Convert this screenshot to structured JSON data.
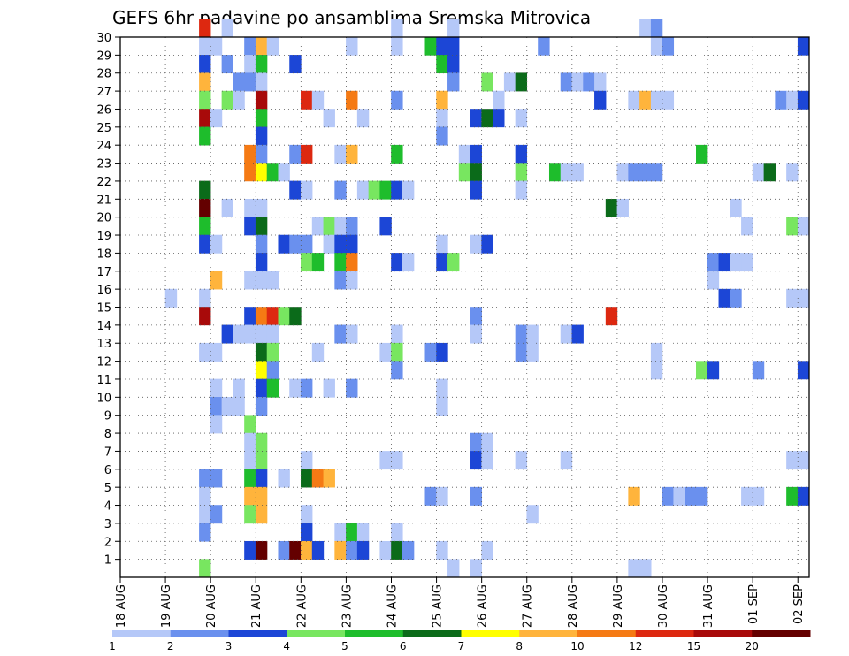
{
  "chart_data": {
    "type": "heatmap",
    "title": "GEFS 6hr padavine po ansamblima Sremska Mitrovica",
    "x_ticks": [
      "18 AUG",
      "19 AUG",
      "20 AUG",
      "21 AUG",
      "22 AUG",
      "23 AUG",
      "24 AUG",
      "25 AUG",
      "26 AUG",
      "27 AUG",
      "28 AUG",
      "29 AUG",
      "30 AUG",
      "31 AUG",
      "01 SEP",
      "02 SEP"
    ],
    "y_ticks": [
      1,
      2,
      3,
      4,
      5,
      6,
      7,
      8,
      9,
      10,
      11,
      12,
      13,
      14,
      15,
      16,
      17,
      18,
      19,
      20,
      21,
      22,
      23,
      24,
      25,
      26,
      27,
      28,
      29,
      30
    ],
    "xlim": [
      0,
      61
    ],
    "ylim": [
      0,
      30
    ],
    "grid": true,
    "colorbar": {
      "levels": [
        1,
        2,
        3,
        4,
        5,
        6,
        7,
        8,
        10,
        12,
        15,
        20
      ],
      "labels": [
        "1",
        "2",
        "3",
        "4",
        "5",
        "6",
        "7",
        "8",
        "10",
        "12",
        "15",
        "20"
      ],
      "colors": [
        "#b5c8f8",
        "#6a90ee",
        "#1c46d6",
        "#78e660",
        "#1ebd2c",
        "#0b6b1a",
        "#ffff00",
        "#ffb43c",
        "#f57a14",
        "#dd2810",
        "#a80a0a",
        "#640000"
      ]
    },
    "cells": [
      [
        7,
        30,
        10
      ],
      [
        9,
        30,
        1
      ],
      [
        24,
        30,
        1
      ],
      [
        29,
        30,
        1
      ],
      [
        46,
        30,
        1
      ],
      [
        47,
        30,
        2
      ],
      [
        7,
        29,
        1
      ],
      [
        8,
        29,
        1
      ],
      [
        11,
        29,
        2
      ],
      [
        12,
        29,
        8
      ],
      [
        13,
        29,
        1
      ],
      [
        20,
        29,
        1
      ],
      [
        24,
        29,
        1
      ],
      [
        27,
        29,
        5
      ],
      [
        28,
        29,
        3
      ],
      [
        29,
        29,
        3
      ],
      [
        37,
        29,
        2
      ],
      [
        47,
        29,
        1
      ],
      [
        48,
        29,
        2
      ],
      [
        60,
        29,
        3
      ],
      [
        7,
        28,
        3
      ],
      [
        9,
        28,
        2
      ],
      [
        11,
        28,
        1
      ],
      [
        12,
        28,
        5
      ],
      [
        15,
        28,
        3
      ],
      [
        28,
        28,
        5
      ],
      [
        29,
        28,
        3
      ],
      [
        7,
        27,
        8
      ],
      [
        10,
        27,
        2
      ],
      [
        11,
        27,
        2
      ],
      [
        12,
        27,
        1
      ],
      [
        29,
        27,
        2
      ],
      [
        32,
        27,
        4
      ],
      [
        34,
        27,
        1
      ],
      [
        35,
        27,
        6
      ],
      [
        39,
        27,
        2
      ],
      [
        40,
        27,
        1
      ],
      [
        41,
        27,
        2
      ],
      [
        42,
        27,
        1
      ],
      [
        7,
        26,
        4
      ],
      [
        9,
        26,
        4
      ],
      [
        10,
        26,
        1
      ],
      [
        12,
        26,
        11
      ],
      [
        16,
        26,
        10
      ],
      [
        17,
        26,
        1
      ],
      [
        20,
        26,
        9
      ],
      [
        24,
        26,
        2
      ],
      [
        28,
        26,
        8
      ],
      [
        33,
        26,
        1
      ],
      [
        42,
        26,
        3
      ],
      [
        45,
        26,
        1
      ],
      [
        46,
        26,
        8
      ],
      [
        47,
        26,
        1
      ],
      [
        48,
        26,
        1
      ],
      [
        58,
        26,
        2
      ],
      [
        59,
        26,
        1
      ],
      [
        60,
        26,
        3
      ],
      [
        7,
        25,
        11
      ],
      [
        8,
        25,
        1
      ],
      [
        12,
        25,
        5
      ],
      [
        18,
        25,
        1
      ],
      [
        21,
        25,
        1
      ],
      [
        28,
        25,
        1
      ],
      [
        31,
        25,
        3
      ],
      [
        32,
        25,
        6
      ],
      [
        33,
        25,
        3
      ],
      [
        35,
        25,
        1
      ],
      [
        7,
        24,
        5
      ],
      [
        12,
        24,
        3
      ],
      [
        28,
        24,
        2
      ],
      [
        11,
        23,
        9
      ],
      [
        12,
        23,
        2
      ],
      [
        15,
        23,
        2
      ],
      [
        16,
        23,
        10
      ],
      [
        19,
        23,
        1
      ],
      [
        20,
        23,
        8
      ],
      [
        24,
        23,
        5
      ],
      [
        30,
        23,
        1
      ],
      [
        31,
        23,
        3
      ],
      [
        35,
        23,
        3
      ],
      [
        51,
        23,
        5
      ],
      [
        11,
        22,
        9
      ],
      [
        12,
        22,
        7
      ],
      [
        13,
        22,
        5
      ],
      [
        14,
        22,
        1
      ],
      [
        30,
        22,
        4
      ],
      [
        31,
        22,
        6
      ],
      [
        35,
        22,
        4
      ],
      [
        38,
        22,
        5
      ],
      [
        39,
        22,
        1
      ],
      [
        40,
        22,
        1
      ],
      [
        44,
        22,
        1
      ],
      [
        45,
        22,
        2
      ],
      [
        46,
        22,
        2
      ],
      [
        47,
        22,
        2
      ],
      [
        56,
        22,
        1
      ],
      [
        57,
        22,
        6
      ],
      [
        59,
        22,
        1
      ],
      [
        7,
        21,
        6
      ],
      [
        15,
        21,
        3
      ],
      [
        16,
        21,
        1
      ],
      [
        19,
        21,
        2
      ],
      [
        21,
        21,
        1
      ],
      [
        22,
        21,
        4
      ],
      [
        23,
        21,
        5
      ],
      [
        24,
        21,
        3
      ],
      [
        25,
        21,
        1
      ],
      [
        31,
        21,
        3
      ],
      [
        35,
        21,
        1
      ],
      [
        7,
        20,
        12
      ],
      [
        9,
        20,
        1
      ],
      [
        11,
        20,
        1
      ],
      [
        12,
        20,
        1
      ],
      [
        43,
        20,
        6
      ],
      [
        44,
        20,
        1
      ],
      [
        54,
        20,
        1
      ],
      [
        7,
        19,
        5
      ],
      [
        11,
        19,
        3
      ],
      [
        12,
        19,
        6
      ],
      [
        17,
        19,
        1
      ],
      [
        18,
        19,
        4
      ],
      [
        19,
        19,
        1
      ],
      [
        20,
        19,
        2
      ],
      [
        23,
        19,
        3
      ],
      [
        55,
        19,
        1
      ],
      [
        59,
        19,
        4
      ],
      [
        60,
        19,
        1
      ],
      [
        7,
        18,
        3
      ],
      [
        8,
        18,
        1
      ],
      [
        12,
        18,
        2
      ],
      [
        14,
        18,
        3
      ],
      [
        15,
        18,
        2
      ],
      [
        16,
        18,
        2
      ],
      [
        18,
        18,
        1
      ],
      [
        19,
        18,
        3
      ],
      [
        20,
        18,
        3
      ],
      [
        28,
        18,
        1
      ],
      [
        31,
        18,
        1
      ],
      [
        32,
        18,
        3
      ],
      [
        12,
        17,
        3
      ],
      [
        16,
        17,
        4
      ],
      [
        17,
        17,
        5
      ],
      [
        19,
        17,
        5
      ],
      [
        20,
        17,
        9
      ],
      [
        24,
        17,
        3
      ],
      [
        25,
        17,
        1
      ],
      [
        28,
        17,
        3
      ],
      [
        29,
        17,
        4
      ],
      [
        52,
        17,
        2
      ],
      [
        53,
        17,
        3
      ],
      [
        54,
        17,
        1
      ],
      [
        55,
        17,
        1
      ],
      [
        8,
        16,
        8
      ],
      [
        11,
        16,
        1
      ],
      [
        12,
        16,
        1
      ],
      [
        13,
        16,
        1
      ],
      [
        19,
        16,
        2
      ],
      [
        20,
        16,
        1
      ],
      [
        52,
        16,
        1
      ],
      [
        4,
        15,
        1
      ],
      [
        7,
        15,
        1
      ],
      [
        53,
        15,
        3
      ],
      [
        54,
        15,
        2
      ],
      [
        59,
        15,
        1
      ],
      [
        60,
        15,
        1
      ],
      [
        7,
        14,
        11
      ],
      [
        11,
        14,
        3
      ],
      [
        12,
        14,
        9
      ],
      [
        13,
        14,
        10
      ],
      [
        14,
        14,
        4
      ],
      [
        15,
        14,
        6
      ],
      [
        31,
        14,
        2
      ],
      [
        43,
        14,
        10
      ],
      [
        9,
        13,
        3
      ],
      [
        10,
        13,
        1
      ],
      [
        11,
        13,
        1
      ],
      [
        12,
        13,
        1
      ],
      [
        13,
        13,
        1
      ],
      [
        19,
        13,
        2
      ],
      [
        20,
        13,
        1
      ],
      [
        24,
        13,
        1
      ],
      [
        31,
        13,
        1
      ],
      [
        35,
        13,
        2
      ],
      [
        36,
        13,
        1
      ],
      [
        39,
        13,
        1
      ],
      [
        40,
        13,
        3
      ],
      [
        7,
        12,
        1
      ],
      [
        8,
        12,
        1
      ],
      [
        12,
        12,
        6
      ],
      [
        13,
        12,
        4
      ],
      [
        17,
        12,
        1
      ],
      [
        23,
        12,
        1
      ],
      [
        24,
        12,
        4
      ],
      [
        27,
        12,
        2
      ],
      [
        28,
        12,
        3
      ],
      [
        35,
        12,
        2
      ],
      [
        36,
        12,
        1
      ],
      [
        47,
        12,
        1
      ],
      [
        12,
        11,
        7
      ],
      [
        13,
        11,
        2
      ],
      [
        24,
        11,
        2
      ],
      [
        47,
        11,
        1
      ],
      [
        51,
        11,
        4
      ],
      [
        52,
        11,
        3
      ],
      [
        56,
        11,
        2
      ],
      [
        60,
        11,
        3
      ],
      [
        8,
        10,
        1
      ],
      [
        10,
        10,
        1
      ],
      [
        12,
        10,
        3
      ],
      [
        13,
        10,
        5
      ],
      [
        15,
        10,
        1
      ],
      [
        16,
        10,
        2
      ],
      [
        18,
        10,
        1
      ],
      [
        20,
        10,
        2
      ],
      [
        28,
        10,
        1
      ],
      [
        8,
        9,
        2
      ],
      [
        9,
        9,
        1
      ],
      [
        10,
        9,
        1
      ],
      [
        12,
        9,
        2
      ],
      [
        28,
        9,
        1
      ],
      [
        8,
        8,
        1
      ],
      [
        11,
        8,
        4
      ],
      [
        11,
        7,
        1
      ],
      [
        12,
        7,
        4
      ],
      [
        31,
        7,
        2
      ],
      [
        32,
        7,
        1
      ],
      [
        11,
        6,
        1
      ],
      [
        12,
        6,
        4
      ],
      [
        16,
        6,
        1
      ],
      [
        23,
        6,
        1
      ],
      [
        24,
        6,
        1
      ],
      [
        31,
        6,
        3
      ],
      [
        32,
        6,
        1
      ],
      [
        35,
        6,
        1
      ],
      [
        39,
        6,
        1
      ],
      [
        59,
        6,
        1
      ],
      [
        60,
        6,
        1
      ],
      [
        7,
        5,
        2
      ],
      [
        8,
        5,
        2
      ],
      [
        11,
        5,
        5
      ],
      [
        12,
        5,
        3
      ],
      [
        14,
        5,
        1
      ],
      [
        16,
        5,
        6
      ],
      [
        17,
        5,
        9
      ],
      [
        18,
        5,
        8
      ],
      [
        7,
        4,
        1
      ],
      [
        11,
        4,
        8
      ],
      [
        12,
        4,
        8
      ],
      [
        27,
        4,
        2
      ],
      [
        28,
        4,
        1
      ],
      [
        31,
        4,
        2
      ],
      [
        45,
        4,
        8
      ],
      [
        48,
        4,
        2
      ],
      [
        49,
        4,
        1
      ],
      [
        50,
        4,
        2
      ],
      [
        51,
        4,
        2
      ],
      [
        55,
        4,
        1
      ],
      [
        56,
        4,
        1
      ],
      [
        59,
        4,
        5
      ],
      [
        60,
        4,
        3
      ],
      [
        7,
        3,
        1
      ],
      [
        8,
        3,
        2
      ],
      [
        11,
        3,
        4
      ],
      [
        12,
        3,
        8
      ],
      [
        16,
        3,
        1
      ],
      [
        36,
        3,
        1
      ],
      [
        7,
        2,
        2
      ],
      [
        16,
        2,
        3
      ],
      [
        19,
        2,
        1
      ],
      [
        20,
        2,
        5
      ],
      [
        21,
        2,
        1
      ],
      [
        24,
        2,
        1
      ],
      [
        11,
        1,
        3
      ],
      [
        12,
        1,
        12
      ],
      [
        14,
        1,
        2
      ],
      [
        15,
        1,
        12
      ],
      [
        16,
        1,
        8
      ],
      [
        17,
        1,
        3
      ],
      [
        19,
        1,
        8
      ],
      [
        20,
        1,
        2
      ],
      [
        21,
        1,
        3
      ],
      [
        23,
        1,
        1
      ],
      [
        24,
        1,
        6
      ],
      [
        25,
        1,
        2
      ],
      [
        28,
        1,
        1
      ],
      [
        32,
        1,
        1
      ],
      [
        7,
        0,
        4
      ],
      [
        29,
        0,
        1
      ],
      [
        31,
        0,
        1
      ],
      [
        45,
        0,
        1
      ],
      [
        46,
        0,
        1
      ]
    ]
  }
}
